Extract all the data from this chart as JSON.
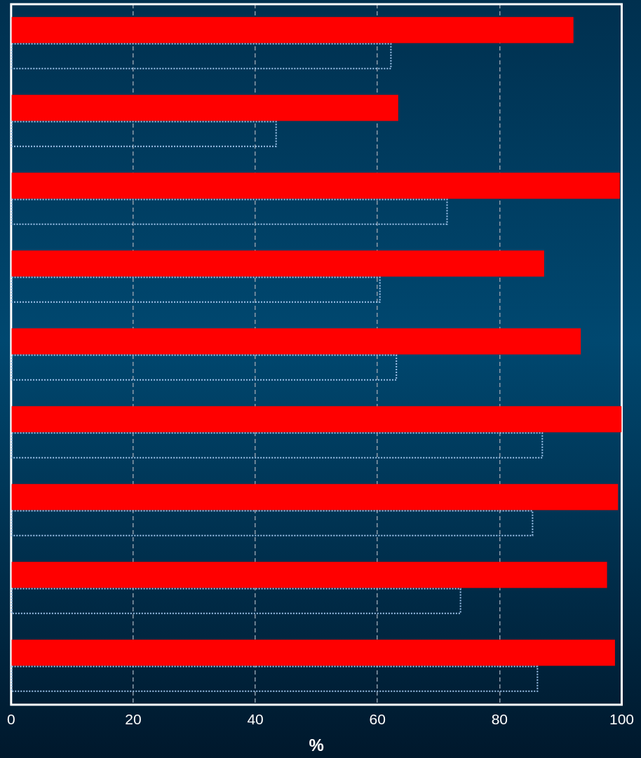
{
  "chart_data": {
    "type": "bar",
    "orientation": "horizontal",
    "xlabel": "%",
    "categories": [
      null,
      null,
      null,
      null,
      null,
      null,
      null,
      null,
      null
    ],
    "series": [
      {
        "color": "#ff0000",
        "values": [
          92.1,
          63.4,
          99.7,
          87.3,
          93.3,
          100,
          99.4,
          97.6,
          98.9
        ]
      },
      {
        "color": "#9ec3ea",
        "line_style": "dotted",
        "values": [
          62.2,
          43.4,
          71.4,
          60.4,
          63.1,
          87.0,
          85.4,
          73.6,
          86.2
        ]
      }
    ],
    "xlim": [
      0,
      100
    ],
    "xticks": [
      0,
      20,
      40,
      60,
      80,
      100
    ],
    "grid": "x",
    "legend": false,
    "tick_labels": "x"
  }
}
